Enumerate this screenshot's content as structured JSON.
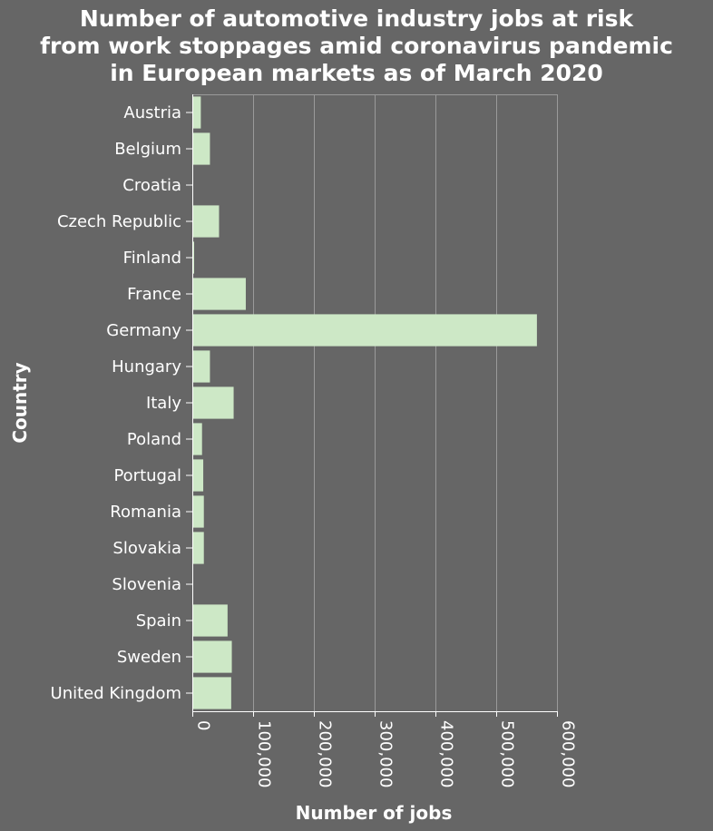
{
  "chart_data": {
    "type": "bar",
    "orientation": "horizontal",
    "title_lines": [
      "Number of automotive industry jobs at risk",
      "from work stoppages amid coronavirus pandemic",
      "in European markets as of March 2020"
    ],
    "xlabel": "Number of jobs",
    "ylabel": "Country",
    "xlim": [
      0,
      600000
    ],
    "xticks": [
      "0",
      "100,000",
      "200,000",
      "300,000",
      "400,000",
      "500,000",
      "600,000"
    ],
    "grid": true,
    "categories": [
      "Austria",
      "Belgium",
      "Croatia",
      "Czech Republic",
      "Finland",
      "France",
      "Germany",
      "Hungary",
      "Italy",
      "Poland",
      "Portugal",
      "Romania",
      "Slovakia",
      "Slovenia",
      "Spain",
      "Sweden",
      "United Kingdom"
    ],
    "values": [
      14000,
      29000,
      0,
      44000,
      3000,
      88000,
      567000,
      29000,
      68000,
      16000,
      18000,
      19000,
      19000,
      0,
      58000,
      65000,
      64000
    ],
    "bar_color": "#cde8c6",
    "background_color": "#666666"
  }
}
